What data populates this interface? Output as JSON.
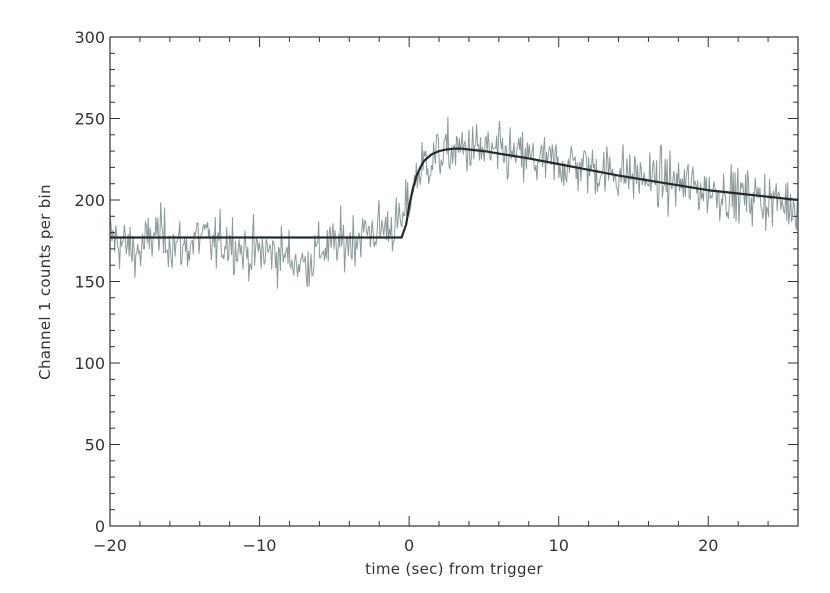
{
  "chart_data": {
    "type": "line",
    "title": "",
    "xlabel": "time (sec) from trigger",
    "ylabel": "Channel 1 counts per bin",
    "xlim": [
      -20,
      26
    ],
    "ylim": [
      0,
      300
    ],
    "x_ticks": [
      -20,
      -10,
      0,
      10,
      20
    ],
    "x_tick_labels": [
      "−20",
      "−10",
      "0",
      "10",
      "20"
    ],
    "y_ticks": [
      0,
      50,
      100,
      150,
      200,
      250,
      300
    ],
    "y_tick_labels": [
      "0",
      "50",
      "100",
      "150",
      "200",
      "250",
      "300"
    ],
    "grid": false,
    "legend": "none",
    "series": [
      {
        "style": "noisy-data",
        "color": "#8a9a9a",
        "x": [
          -20,
          -19,
          -18,
          -17,
          -16,
          -15,
          -14,
          -13,
          -12,
          -11,
          -10,
          -9,
          -8,
          -7,
          -6,
          -5,
          -4,
          -3,
          -2,
          -1,
          -0.5,
          0,
          0.5,
          1,
          2,
          3,
          4,
          5,
          6,
          7,
          8,
          9,
          10,
          11,
          12,
          13,
          14,
          15,
          16,
          17,
          18,
          19,
          20,
          21,
          22,
          23,
          24,
          25,
          26
        ],
        "y": [
          178,
          172,
          168,
          180,
          175,
          170,
          178,
          172,
          176,
          168,
          168,
          168,
          165,
          160,
          170,
          172,
          175,
          180,
          182,
          185,
          185,
          200,
          215,
          222,
          228,
          230,
          232,
          230,
          228,
          227,
          225,
          223,
          222,
          222,
          220,
          218,
          217,
          215,
          213,
          212,
          210,
          208,
          206,
          205,
          203,
          202,
          200,
          198,
          197
        ]
      },
      {
        "style": "model-fit",
        "color": "#222a30",
        "x": [
          -20,
          -15,
          -10,
          -5,
          -0.5,
          -0.2,
          0,
          0.25,
          0.5,
          0.75,
          1,
          1.5,
          2,
          2.5,
          3,
          3.5,
          4,
          5,
          6,
          8,
          10,
          12,
          14,
          16,
          18,
          20,
          22,
          24,
          26
        ],
        "y": [
          177,
          177,
          177,
          177,
          177,
          185,
          196,
          207,
          215,
          220,
          224,
          228,
          230,
          231,
          231.5,
          231.5,
          231,
          230,
          228.5,
          225.5,
          222,
          218.5,
          215,
          212,
          209,
          206,
          204,
          202,
          200
        ]
      }
    ]
  }
}
